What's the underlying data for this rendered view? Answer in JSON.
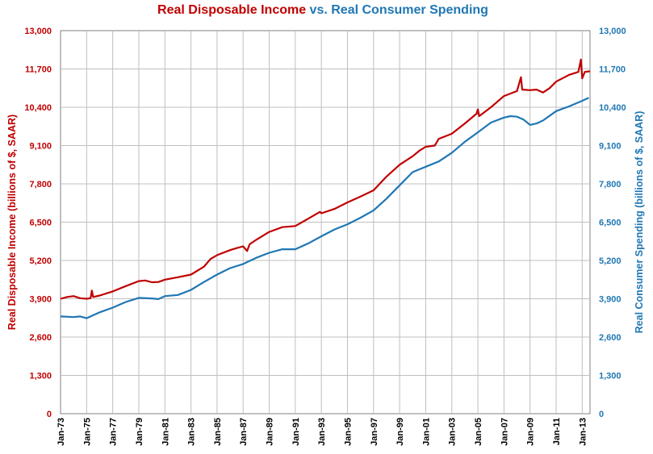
{
  "chart_data": {
    "type": "line",
    "title_parts": [
      {
        "text": "Real Disposable Income",
        "color": "#c00000"
      },
      {
        "text": " vs. ",
        "color": "#1f77b4"
      },
      {
        "text": "Real Consumer Spending",
        "color": "#1f77b4"
      }
    ],
    "ylabel_left": "Real Disposable Income (billions of $, SAAR)",
    "ylabel_right": "Real Consumer Spending (billions of $, SAAR)",
    "ylim": [
      0,
      13000
    ],
    "yticks": [
      0,
      1300,
      2600,
      3900,
      5200,
      6500,
      7800,
      9100,
      10400,
      11700,
      13000
    ],
    "ytick_labels": [
      "0",
      "1,300",
      "2,600",
      "3,900",
      "5,200",
      "6,500",
      "7,800",
      "9,100",
      "10,400",
      "11,700",
      "13,000"
    ],
    "xlim": [
      1973.0,
      2013.6
    ],
    "xticks": [
      1973,
      1975,
      1977,
      1979,
      1981,
      1983,
      1985,
      1987,
      1989,
      1991,
      1993,
      1995,
      1997,
      1999,
      2001,
      2003,
      2005,
      2007,
      2009,
      2011,
      2013
    ],
    "xtick_labels": [
      "Jan-73",
      "Jan-75",
      "Jan-77",
      "Jan-79",
      "Jan-81",
      "Jan-83",
      "Jan-85",
      "Jan-87",
      "Jan-89",
      "Jan-91",
      "Jan-93",
      "Jan-95",
      "Jan-97",
      "Jan-99",
      "Jan-01",
      "Jan-03",
      "Jan-05",
      "Jan-07",
      "Jan-09",
      "Jan-11",
      "Jan-13"
    ],
    "grid": true,
    "series": [
      {
        "name": "Real Disposable Income",
        "color": "#c00000",
        "axis": "left",
        "points": [
          [
            1973.0,
            3900
          ],
          [
            1973.5,
            3960
          ],
          [
            1974.0,
            3990
          ],
          [
            1974.5,
            3920
          ],
          [
            1975.0,
            3900
          ],
          [
            1975.3,
            3920
          ],
          [
            1975.4,
            4180
          ],
          [
            1975.5,
            3960
          ],
          [
            1976.0,
            4010
          ],
          [
            1977.0,
            4150
          ],
          [
            1978.0,
            4330
          ],
          [
            1979.0,
            4500
          ],
          [
            1979.5,
            4520
          ],
          [
            1980.0,
            4460
          ],
          [
            1980.5,
            4470
          ],
          [
            1981.0,
            4550
          ],
          [
            1982.0,
            4630
          ],
          [
            1983.0,
            4720
          ],
          [
            1984.0,
            4990
          ],
          [
            1984.5,
            5250
          ],
          [
            1985.0,
            5380
          ],
          [
            1986.0,
            5550
          ],
          [
            1986.5,
            5620
          ],
          [
            1987.0,
            5680
          ],
          [
            1987.3,
            5520
          ],
          [
            1987.5,
            5750
          ],
          [
            1988.0,
            5900
          ],
          [
            1989.0,
            6170
          ],
          [
            1990.0,
            6330
          ],
          [
            1991.0,
            6370
          ],
          [
            1992.0,
            6620
          ],
          [
            1992.9,
            6850
          ],
          [
            1993.0,
            6800
          ],
          [
            1994.0,
            6950
          ],
          [
            1995.0,
            7170
          ],
          [
            1996.0,
            7370
          ],
          [
            1997.0,
            7580
          ],
          [
            1998.0,
            8050
          ],
          [
            1999.0,
            8450
          ],
          [
            2000.0,
            8740
          ],
          [
            2000.5,
            8920
          ],
          [
            2001.0,
            9060
          ],
          [
            2001.7,
            9100
          ],
          [
            2002.0,
            9330
          ],
          [
            2003.0,
            9500
          ],
          [
            2004.0,
            9850
          ],
          [
            2004.9,
            10180
          ],
          [
            2005.0,
            10330
          ],
          [
            2005.1,
            10100
          ],
          [
            2006.0,
            10400
          ],
          [
            2007.0,
            10780
          ],
          [
            2008.0,
            10950
          ],
          [
            2008.3,
            11420
          ],
          [
            2008.4,
            11000
          ],
          [
            2009.0,
            10980
          ],
          [
            2009.5,
            11000
          ],
          [
            2010.0,
            10900
          ],
          [
            2010.5,
            11050
          ],
          [
            2011.0,
            11270
          ],
          [
            2012.0,
            11500
          ],
          [
            2012.7,
            11600
          ],
          [
            2012.9,
            12020
          ],
          [
            2013.0,
            11380
          ],
          [
            2013.2,
            11600
          ],
          [
            2013.6,
            11620
          ]
        ]
      },
      {
        "name": "Real Consumer Spending",
        "color": "#1f77b4",
        "axis": "right",
        "points": [
          [
            1973.0,
            3300
          ],
          [
            1974.0,
            3280
          ],
          [
            1974.5,
            3300
          ],
          [
            1975.0,
            3240
          ],
          [
            1976.0,
            3440
          ],
          [
            1977.0,
            3600
          ],
          [
            1978.0,
            3790
          ],
          [
            1979.0,
            3930
          ],
          [
            1980.0,
            3910
          ],
          [
            1980.5,
            3890
          ],
          [
            1981.0,
            3990
          ],
          [
            1982.0,
            4030
          ],
          [
            1983.0,
            4200
          ],
          [
            1984.0,
            4470
          ],
          [
            1985.0,
            4720
          ],
          [
            1986.0,
            4940
          ],
          [
            1987.0,
            5080
          ],
          [
            1988.0,
            5290
          ],
          [
            1989.0,
            5460
          ],
          [
            1990.0,
            5580
          ],
          [
            1991.0,
            5580
          ],
          [
            1992.0,
            5780
          ],
          [
            1993.0,
            6020
          ],
          [
            1994.0,
            6250
          ],
          [
            1995.0,
            6430
          ],
          [
            1996.0,
            6650
          ],
          [
            1997.0,
            6900
          ],
          [
            1998.0,
            7300
          ],
          [
            1999.0,
            7750
          ],
          [
            2000.0,
            8200
          ],
          [
            2001.0,
            8380
          ],
          [
            2002.0,
            8560
          ],
          [
            2003.0,
            8850
          ],
          [
            2004.0,
            9230
          ],
          [
            2005.0,
            9550
          ],
          [
            2006.0,
            9880
          ],
          [
            2007.0,
            10050
          ],
          [
            2007.5,
            10100
          ],
          [
            2008.0,
            10080
          ],
          [
            2008.5,
            9980
          ],
          [
            2009.0,
            9800
          ],
          [
            2009.5,
            9850
          ],
          [
            2010.0,
            9950
          ],
          [
            2011.0,
            10270
          ],
          [
            2012.0,
            10430
          ],
          [
            2013.0,
            10620
          ],
          [
            2013.5,
            10720
          ]
        ]
      }
    ]
  }
}
